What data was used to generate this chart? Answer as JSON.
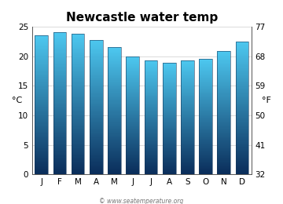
{
  "title": "Newcastle water temp",
  "months": [
    "J",
    "F",
    "M",
    "A",
    "M",
    "J",
    "J",
    "A",
    "S",
    "O",
    "N",
    "D"
  ],
  "values_c": [
    23.5,
    24.0,
    23.8,
    22.8,
    21.5,
    20.0,
    19.3,
    18.9,
    19.3,
    19.5,
    20.9,
    22.5
  ],
  "ylim_c": [
    0,
    25
  ],
  "yticks_c": [
    0,
    5,
    10,
    15,
    20,
    25
  ],
  "yticks_f": [
    32,
    41,
    50,
    59,
    68,
    77
  ],
  "ylabel_left": "°C",
  "ylabel_right": "°F",
  "bar_color_top": "#4dc8f0",
  "bar_color_bottom": "#0a2d5a",
  "background_color": "#ffffff",
  "plot_bg_color": "#ffffff",
  "watermark": "© www.seatemperature.org",
  "title_fontsize": 11,
  "tick_fontsize": 7.5,
  "label_fontsize": 8
}
